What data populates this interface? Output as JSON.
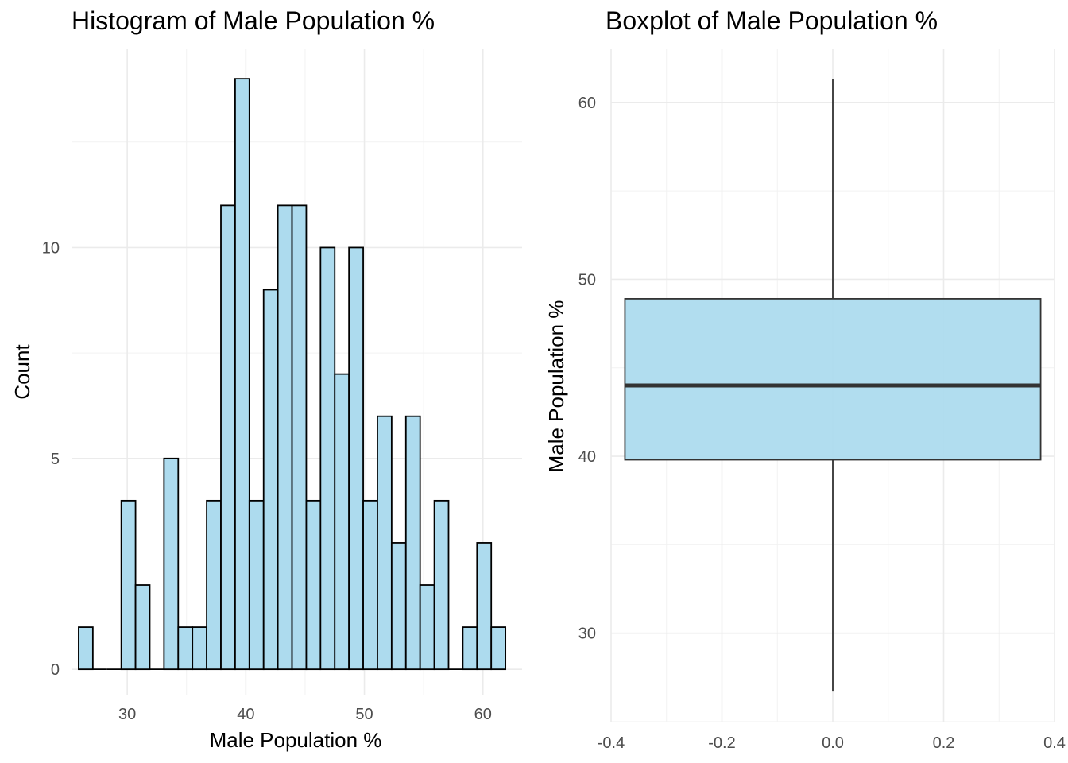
{
  "chart_data": [
    {
      "type": "bar",
      "title": "Histogram of Male Population %",
      "xlabel": "Male Population %",
      "ylabel": "Count",
      "binwidth": 1.2,
      "bin_centers": [
        26.5,
        27.7,
        28.9,
        30.1,
        31.3,
        32.5,
        33.7,
        34.9,
        36.1,
        37.3,
        38.5,
        39.7,
        40.9,
        42.1,
        43.3,
        44.5,
        45.7,
        46.9,
        48.1,
        49.3,
        50.5,
        51.7,
        52.9,
        54.1,
        55.3,
        56.5,
        57.7,
        58.9,
        60.1,
        61.3
      ],
      "values": [
        1,
        0,
        0,
        4,
        2,
        0,
        5,
        1,
        1,
        4,
        11,
        14,
        4,
        9,
        11,
        11,
        4,
        10,
        7,
        10,
        4,
        6,
        3,
        6,
        2,
        4,
        0,
        1,
        3,
        1
      ],
      "xlim": [
        25.3,
        63.3
      ],
      "ylim": [
        -0.6,
        14.7
      ],
      "xticks": [
        30,
        40,
        50,
        60
      ],
      "yticks": [
        0,
        5,
        10
      ],
      "fill": "#ADDBEE",
      "stroke": "#000000",
      "grid": true
    },
    {
      "type": "boxplot",
      "title": "Boxplot of Male Population %",
      "xlabel": "",
      "ylabel": "Male Population %",
      "x_center": 0,
      "box_half_width": 0.375,
      "min": 26.7,
      "q1": 39.8,
      "median": 44.0,
      "q3": 48.9,
      "max": 61.3,
      "xlim": [
        -0.4,
        0.4
      ],
      "ylim": [
        25.0,
        63.0
      ],
      "xticks": [
        -0.4,
        -0.2,
        0.0,
        0.2,
        0.4
      ],
      "xtick_labels": [
        "-0.4",
        "-0.2",
        "0.0",
        "0.2",
        "0.4"
      ],
      "yticks": [
        30,
        40,
        50,
        60
      ],
      "fill": "#ADDBEE",
      "stroke": "#333333",
      "grid": true
    }
  ]
}
